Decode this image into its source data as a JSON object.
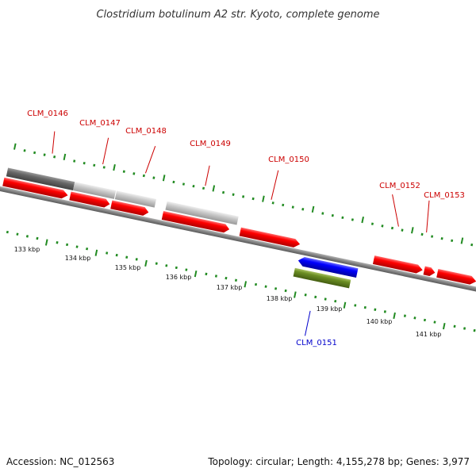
{
  "title": "Clostridium botulinum A2 str. Kyoto, complete genome",
  "footer": {
    "accession": "Accession: NC_012563",
    "summary": "Topology: circular; Length: 4,155,278 bp; Genes: 3,977"
  },
  "colors": {
    "backbone": "#808080",
    "ticks": "#228b22",
    "forward_gene": "#ff0000",
    "blue_gene": "#0000ff",
    "olive_gene": "#6b8e23",
    "label_red": "#cc0000",
    "label_blue": "#0000cc",
    "track_dark": "#666666",
    "track_light": "#c8c8c8"
  },
  "scale_labels": [
    "133 kbp",
    "134 kbp",
    "135 kbp",
    "136 kbp",
    "137 kbp",
    "138 kbp",
    "139 kbp",
    "140 kbp",
    "141 kbp"
  ],
  "gene_labels": [
    {
      "id": "CLM_0146",
      "color": "red"
    },
    {
      "id": "CLM_0147",
      "color": "red"
    },
    {
      "id": "CLM_0148",
      "color": "red"
    },
    {
      "id": "CLM_0149",
      "color": "red"
    },
    {
      "id": "CLM_0150",
      "color": "red"
    },
    {
      "id": "CLM_0151",
      "color": "blue"
    },
    {
      "id": "CLM_0152",
      "color": "red"
    },
    {
      "id": "CLM_0153",
      "color": "red"
    }
  ]
}
